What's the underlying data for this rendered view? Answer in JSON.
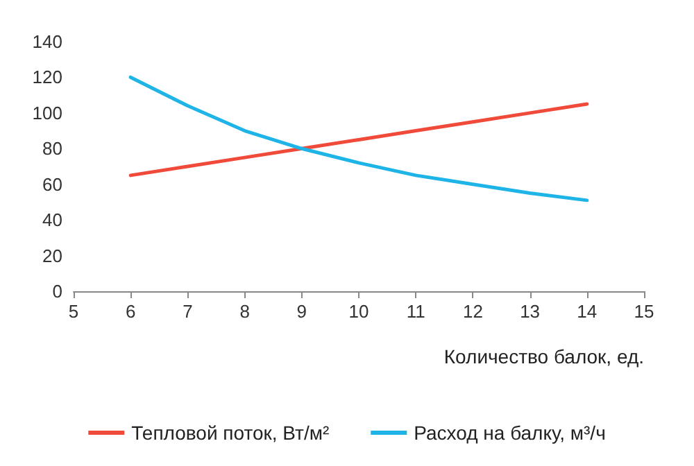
{
  "chart_data": {
    "type": "line",
    "xlabel": "Количество балок, ед.",
    "x": [
      6,
      7,
      8,
      9,
      10,
      11,
      12,
      13,
      14
    ],
    "xlim": [
      5,
      15
    ],
    "xticks": [
      5,
      6,
      7,
      8,
      9,
      10,
      11,
      12,
      13,
      14,
      15
    ],
    "ylim": [
      0,
      140
    ],
    "yticks": [
      0,
      20,
      40,
      60,
      80,
      100,
      120,
      140
    ],
    "grid": false,
    "legend": "bottom",
    "marker": "none",
    "line_style": "solid",
    "series": [
      {
        "name": "Тепловой поток, Вт/м²",
        "color": "#f04a3a",
        "values": [
          65,
          70,
          75,
          80,
          85,
          90,
          95,
          100,
          105
        ]
      },
      {
        "name": "Расход на балку, м³/ч",
        "color": "#1eb4e8",
        "values": [
          120,
          104,
          90,
          80,
          72,
          65,
          60,
          55,
          51
        ]
      }
    ]
  }
}
